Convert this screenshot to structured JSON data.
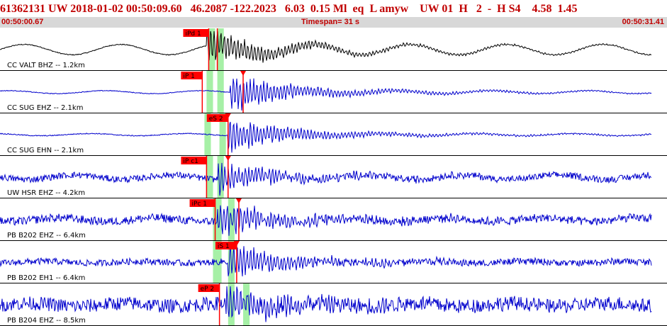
{
  "header": {
    "summary": "61362131 UW 2018-01-02 00:50:09.60   46.2087 -122.2023   6.03  0.15 Ml  eq  L amyw    UW 01  H   2  -  H S4    4.58  1.45",
    "start_time": "00:50:00.67",
    "timespan": "Timespan=  31 s",
    "end_time": "00:50:31.41"
  },
  "colors": {
    "title_red": "#c00000",
    "subrow_bg": "#d8d8d8",
    "pick_red": "#ff0000",
    "window_green": "#a6f0a6",
    "trace_black": "#000000",
    "trace_blue": "#0000cc"
  },
  "traces": [
    {
      "label": "CC VALT BHZ -- 1.2km",
      "color": "black",
      "amp": 0.28,
      "noise": 0.05,
      "onset_s": 9.6,
      "peak_amp": 1.0,
      "picks": [
        {
          "text": "iPd 1",
          "time_s": 9.7,
          "marker": false
        },
        {
          "text": "",
          "time_s": 10.1,
          "marker": false
        }
      ]
    },
    {
      "label": "CC SUG EHZ -- 2.1km",
      "color": "blue",
      "amp": 0.08,
      "noise": 0.04,
      "onset_s": 10.7,
      "peak_amp": 1.0,
      "picks": [
        {
          "text": "iP 1",
          "time_s": 9.4,
          "marker": false
        },
        {
          "text": "",
          "time_s": 11.3,
          "marker": true
        }
      ]
    },
    {
      "label": "CC SUG EHN -- 2.1km",
      "color": "blue",
      "amp": 0.06,
      "noise": 0.05,
      "onset_s": 10.6,
      "peak_amp": 0.9,
      "picks": [
        {
          "text": "eS 2",
          "time_s": 10.6,
          "marker": true
        }
      ]
    },
    {
      "label": "UW HSR EHZ -- 4.2km",
      "color": "blue",
      "amp": 0.12,
      "noise": 0.35,
      "onset_s": 10.1,
      "peak_amp": 0.8,
      "picks": [
        {
          "text": "iP c1",
          "time_s": 9.6,
          "marker": false
        },
        {
          "text": "",
          "time_s": 10.6,
          "marker": true
        }
      ]
    },
    {
      "label": "PB B202 EHZ -- 6.4km",
      "color": "blue",
      "amp": 0.1,
      "noise": 0.45,
      "onset_s": 10.1,
      "peak_amp": 0.9,
      "picks": [
        {
          "text": "iPc 1",
          "time_s": 10.0,
          "marker": false
        },
        {
          "text": "",
          "time_s": 11.1,
          "marker": true
        }
      ]
    },
    {
      "label": "PB B202 EH1 -- 6.4km",
      "color": "blue",
      "amp": 0.05,
      "noise": 0.35,
      "onset_s": 10.6,
      "peak_amp": 0.9,
      "picks": [
        {
          "text": "iS 1",
          "time_s": 11.0,
          "marker": true
        }
      ]
    },
    {
      "label": "PB B204 EHZ -- 8.5km",
      "color": "blue",
      "amp": 0.08,
      "noise": 0.75,
      "onset_s": 10.5,
      "peak_amp": 0.95,
      "picks": [
        {
          "text": "eP 2",
          "time_s": 10.2,
          "marker": false
        }
      ]
    }
  ],
  "pick_windows": [
    {
      "trace": 0,
      "start_s": 9.7,
      "end_s": 10.0
    },
    {
      "trace": 0,
      "start_s": 10.1,
      "end_s": 10.4
    },
    {
      "trace": 1,
      "start_s": 9.6,
      "end_s": 9.9
    },
    {
      "trace": 1,
      "start_s": 10.1,
      "end_s": 10.4
    },
    {
      "trace": 2,
      "start_s": 9.5,
      "end_s": 9.8
    },
    {
      "trace": 2,
      "start_s": 10.2,
      "end_s": 10.5
    },
    {
      "trace": 3,
      "start_s": 9.6,
      "end_s": 9.9
    },
    {
      "trace": 3,
      "start_s": 10.1,
      "end_s": 10.4
    },
    {
      "trace": 4,
      "start_s": 9.9,
      "end_s": 10.3
    },
    {
      "trace": 4,
      "start_s": 10.6,
      "end_s": 10.9
    },
    {
      "trace": 5,
      "start_s": 9.9,
      "end_s": 10.3
    },
    {
      "trace": 5,
      "start_s": 10.6,
      "end_s": 10.9
    },
    {
      "trace": 6,
      "start_s": 10.6,
      "end_s": 10.9
    },
    {
      "trace": 6,
      "start_s": 11.3,
      "end_s": 11.6
    }
  ]
}
